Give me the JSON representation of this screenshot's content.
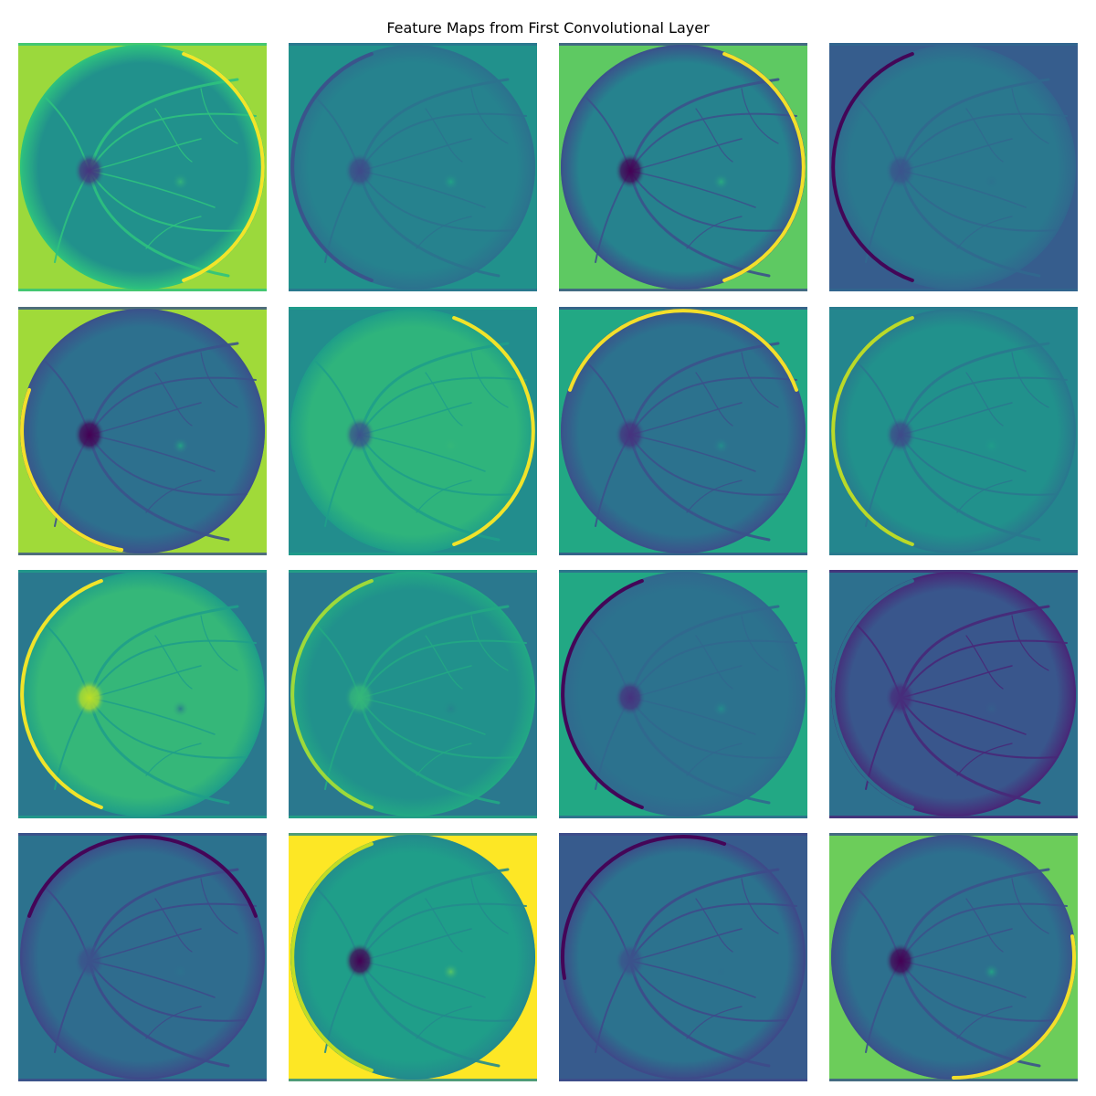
{
  "figure": {
    "title": "Feature Maps from First Convolutional Layer"
  },
  "colormap": "viridis",
  "grid": {
    "rows": 4,
    "cols": 4
  },
  "maps": [
    {
      "bg": "#9bd93c",
      "disc": "#21918c",
      "rim": "#fde725",
      "rim_side": "right",
      "od": "#46327e",
      "fovea": "#35b779",
      "vessel": "#2ec27e"
    },
    {
      "bg": "#21918c",
      "disc": "#26828e",
      "rim": "#3b528b",
      "rim_side": "left",
      "od": "#3e4a89",
      "fovea": "#21a685",
      "vessel": "#2c728e"
    },
    {
      "bg": "#5ec962",
      "disc": "#26828e",
      "rim": "#fde725",
      "rim_side": "right",
      "od": "#440154",
      "fovea": "#29af7f",
      "vessel": "#3b528b"
    },
    {
      "bg": "#365d8d",
      "disc": "#2a788e",
      "rim": "#440154",
      "rim_side": "left",
      "od": "#3a548c",
      "fovea": "#2c728e",
      "vessel": "#31688e"
    },
    {
      "bg": "#a0da39",
      "disc": "#2d708e",
      "rim": "#fde725",
      "rim_side": "bottom-left",
      "od": "#440154",
      "fovea": "#22a884",
      "vessel": "#3b528b"
    },
    {
      "bg": "#228d8d",
      "disc": "#2fb47c",
      "rim": "#fde725",
      "rim_side": "right",
      "od": "#3b528b",
      "fovea": "#35b779",
      "vessel": "#1f9e89"
    },
    {
      "bg": "#22a884",
      "disc": "#2c728e",
      "rim": "#fde725",
      "rim_side": "top",
      "od": "#46327e",
      "fovea": "#21918c",
      "vessel": "#3b528b"
    },
    {
      "bg": "#24868e",
      "disc": "#21918c",
      "rim": "#c2df23",
      "rim_side": "left",
      "od": "#3e4a89",
      "fovea": "#1f9e89",
      "vessel": "#2a788e"
    },
    {
      "bg": "#2a788e",
      "disc": "#35b779",
      "rim": "#fde725",
      "rim_side": "left",
      "od": "#bddf26",
      "fovea": "#2a788e",
      "vessel": "#1f9e89"
    },
    {
      "bg": "#2a788e",
      "disc": "#21918c",
      "rim": "#a5db36",
      "rim_side": "left",
      "od": "#35b779",
      "fovea": "#26828e",
      "vessel": "#22a884"
    },
    {
      "bg": "#22a884",
      "disc": "#2c728e",
      "rim": "#440154",
      "rim_side": "left",
      "od": "#46327e",
      "fovea": "#21918c",
      "vessel": "#31688e"
    },
    {
      "bg": "#2d708e",
      "disc": "#39568c",
      "rim": "#2c728e",
      "rim_side": "left",
      "od": "#472d7b",
      "fovea": "#355f8d",
      "vessel": "#482878"
    },
    {
      "bg": "#2c728e",
      "disc": "#2f6c8e",
      "rim": "#440154",
      "rim_side": "top",
      "od": "#3b528b",
      "fovea": "#2c728e",
      "vessel": "#3e4a89"
    },
    {
      "bg": "#fde725",
      "disc": "#1f9e89",
      "rim": "#cae11f",
      "rim_side": "left",
      "od": "#440154",
      "fovea": "#5ec962",
      "vessel": "#238a8d"
    },
    {
      "bg": "#375b8d",
      "disc": "#2c728e",
      "rim": "#440154",
      "rim_side": "top-left",
      "od": "#3b528b",
      "fovea": "#2d708e",
      "vessel": "#3e4a89"
    },
    {
      "bg": "#6ccd5a",
      "disc": "#2d708e",
      "rim": "#fde725",
      "rim_side": "bottom-right",
      "od": "#440154",
      "fovea": "#22a884",
      "vessel": "#3b528b"
    }
  ]
}
